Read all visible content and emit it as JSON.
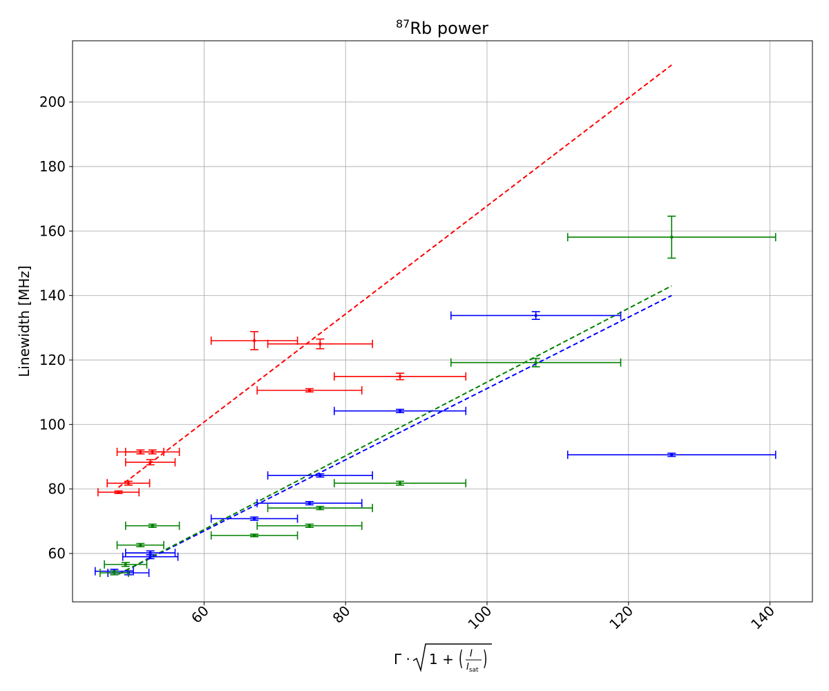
{
  "chart_data": {
    "type": "scatter",
    "title": {
      "sup": "87",
      "main": "Rb power"
    },
    "xlabel": "Γ · √(1 + (I/Isat))",
    "xlabel_parts": {
      "prefix": "Γ ·",
      "one": "1 +",
      "I": "I",
      "Isat_base": "I",
      "Isat_sub": "sat"
    },
    "ylabel": "Linewidth [MHz]",
    "xlim": [
      41.4,
      146
    ],
    "ylim": [
      45,
      219
    ],
    "xticks": [
      60,
      80,
      100,
      120,
      140
    ],
    "yticks": [
      60,
      80,
      100,
      120,
      140,
      160,
      180,
      200
    ],
    "xtick_labels": [
      "60",
      "80",
      "100",
      "120",
      "140"
    ],
    "ytick_labels": [
      "60",
      "80",
      "100",
      "120",
      "140",
      "160",
      "180",
      "200"
    ],
    "grid": true,
    "legend": "none",
    "series": [
      {
        "color": "#ff0000",
        "points": [
          {
            "x": 47.9,
            "y": 79.0,
            "xerr": 2.9,
            "yerr": 0.4
          },
          {
            "x": 49.3,
            "y": 81.8,
            "xerr": 3.0,
            "yerr": 0.6
          },
          {
            "x": 52.4,
            "y": 88.3,
            "xerr": 3.5,
            "yerr": 0.8
          },
          {
            "x": 51.0,
            "y": 91.5,
            "xerr": 3.3,
            "yerr": 0.6
          },
          {
            "x": 52.7,
            "y": 91.5,
            "xerr": 3.8,
            "yerr": 0.6
          },
          {
            "x": 67.1,
            "y": 126.0,
            "xerr": 6.1,
            "yerr": 2.8
          },
          {
            "x": 76.4,
            "y": 125.0,
            "xerr": 7.4,
            "yerr": 1.5
          },
          {
            "x": 74.9,
            "y": 110.6,
            "xerr": 7.4,
            "yerr": 0.5
          },
          {
            "x": 87.7,
            "y": 114.9,
            "xerr": 9.3,
            "yerr": 1.0
          }
        ],
        "fit": {
          "x": [
            47.9,
            126.1
          ],
          "y": [
            80.5,
            211.5
          ]
        }
      },
      {
        "color": "#0000ff",
        "points": [
          {
            "x": 47.3,
            "y": 54.5,
            "xerr": 2.7,
            "yerr": 0.6
          },
          {
            "x": 49.3,
            "y": 54.0,
            "xerr": 2.9,
            "yerr": 0.6
          },
          {
            "x": 52.4,
            "y": 59.0,
            "xerr": 3.9,
            "yerr": 0.6
          },
          {
            "x": 52.4,
            "y": 60.2,
            "xerr": 3.5,
            "yerr": 0.6
          },
          {
            "x": 67.1,
            "y": 70.8,
            "xerr": 6.1,
            "yerr": 0.5
          },
          {
            "x": 74.9,
            "y": 75.6,
            "xerr": 7.4,
            "yerr": 0.5
          },
          {
            "x": 76.4,
            "y": 84.2,
            "xerr": 7.4,
            "yerr": 0.5
          },
          {
            "x": 87.7,
            "y": 104.2,
            "xerr": 9.3,
            "yerr": 0.5
          },
          {
            "x": 106.9,
            "y": 133.8,
            "xerr": 12.0,
            "yerr": 1.2
          },
          {
            "x": 126.1,
            "y": 90.6,
            "xerr": 14.7,
            "yerr": 0.5
          }
        ],
        "fit": {
          "x": [
            47.9,
            126.1
          ],
          "y": [
            53.6,
            140.0
          ]
        }
      },
      {
        "color": "#008000",
        "points": [
          {
            "x": 47.3,
            "y": 54.0,
            "xerr": 2.0,
            "yerr": 0.6
          },
          {
            "x": 48.9,
            "y": 56.6,
            "xerr": 3.0,
            "yerr": 0.6
          },
          {
            "x": 51.0,
            "y": 62.6,
            "xerr": 3.3,
            "yerr": 0.5
          },
          {
            "x": 52.7,
            "y": 68.6,
            "xerr": 3.8,
            "yerr": 0.5
          },
          {
            "x": 67.1,
            "y": 65.6,
            "xerr": 6.1,
            "yerr": 0.4
          },
          {
            "x": 74.9,
            "y": 68.6,
            "xerr": 7.4,
            "yerr": 0.5
          },
          {
            "x": 76.4,
            "y": 74.1,
            "xerr": 7.4,
            "yerr": 0.5
          },
          {
            "x": 87.7,
            "y": 81.8,
            "xerr": 9.3,
            "yerr": 0.6
          },
          {
            "x": 106.9,
            "y": 119.2,
            "xerr": 12.0,
            "yerr": 1.3
          },
          {
            "x": 126.1,
            "y": 158.1,
            "xerr": 14.7,
            "yerr": 6.5
          }
        ],
        "fit": {
          "x": [
            47.9,
            126.1
          ],
          "y": [
            53.6,
            143.0
          ]
        }
      }
    ]
  }
}
